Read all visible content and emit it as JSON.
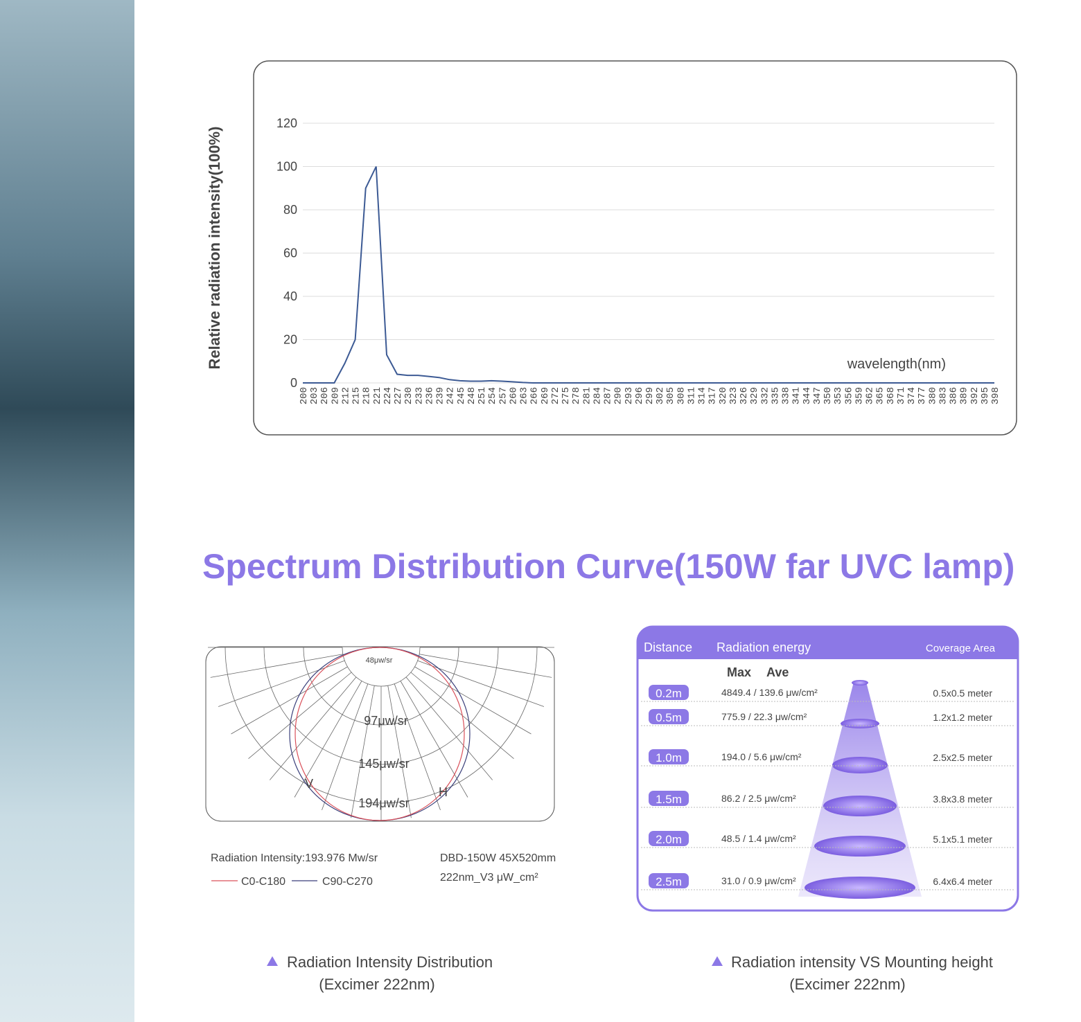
{
  "chart_data": {
    "type": "line",
    "ylabel": "Relative radiation intensity(100%)",
    "xlabel": "wavelength(nm)",
    "categories": [
      200,
      203,
      206,
      209,
      212,
      215,
      218,
      221,
      224,
      227,
      230,
      233,
      236,
      239,
      242,
      245,
      248,
      251,
      254,
      257,
      260,
      263,
      266,
      269,
      272,
      275,
      278,
      281,
      284,
      287,
      290,
      293,
      296,
      299,
      302,
      305,
      308,
      311,
      314,
      317,
      320,
      323,
      326,
      329,
      332,
      335,
      338,
      341,
      344,
      347,
      350,
      353,
      356,
      359,
      362,
      365,
      368,
      371,
      374,
      377,
      380,
      383,
      386,
      389,
      392,
      395,
      398
    ],
    "values": [
      0,
      0,
      0,
      0,
      9,
      20,
      90,
      100,
      13,
      4,
      3.5,
      3.5,
      3,
      2.5,
      1.5,
      1,
      0.8,
      0.8,
      1,
      0.8,
      0.5,
      0.2,
      0,
      0,
      0,
      0,
      0,
      0,
      0,
      0,
      0,
      0,
      0,
      0,
      0,
      0,
      0,
      0,
      0,
      0,
      0,
      0,
      0,
      0,
      0,
      0,
      0,
      0,
      0,
      0,
      0,
      0,
      0,
      0,
      0,
      0,
      0,
      0,
      0,
      0,
      0,
      0,
      0,
      0,
      0,
      0,
      0
    ],
    "color": "#3c5a94",
    "ylim": [
      0,
      120
    ],
    "yticks": [
      0,
      20,
      40,
      60,
      80,
      100,
      120
    ],
    "grid": true
  },
  "heading": "Spectrum Distribution Curve(150W far UVC lamp)",
  "polar": {
    "ring_labels": [
      "48μw/sr",
      "97μw/sr",
      "145μw/sr",
      "194μw/sr"
    ],
    "curve_labels": [
      "V",
      "H"
    ],
    "intensity": "Radiation Intensity:193.976 Mw/sr",
    "legend": [
      {
        "name": "C0-C180",
        "color": "#d9505a"
      },
      {
        "name": "C90-C270",
        "color": "#3a3f7a"
      }
    ],
    "model": "DBD-150W 45X520mm",
    "unit": "222nm_V3 μW_cm²"
  },
  "table": {
    "header": [
      "Distance",
      "Radiation energy",
      "Coverage Area"
    ],
    "subheader": [
      "Max",
      "Ave"
    ],
    "rows": [
      [
        "0.2m",
        "4849.4 / 139.6 μw/cm²",
        "0.5x0.5 meter"
      ],
      [
        "0.5m",
        "775.9 / 22.3 μw/cm²",
        "1.2x1.2 meter"
      ],
      [
        "1.0m",
        "194.0 / 5.6 μw/cm²",
        "2.5x2.5 meter"
      ],
      [
        "1.5m",
        "86.2 / 2.5 μw/cm²",
        "3.8x3.8 meter"
      ],
      [
        "2.0m",
        "48.5 / 1.4 μw/cm²",
        "5.1x5.1 meter"
      ],
      [
        "2.5m",
        "31.0 / 0.9 μw/cm²",
        "6.4x6.4 meter"
      ]
    ]
  },
  "captions": [
    [
      "Radiation Intensity Distribution",
      "(Excimer 222nm)"
    ],
    [
      "Radiation intensity VS Mounting height",
      "(Excimer 222nm)"
    ]
  ]
}
